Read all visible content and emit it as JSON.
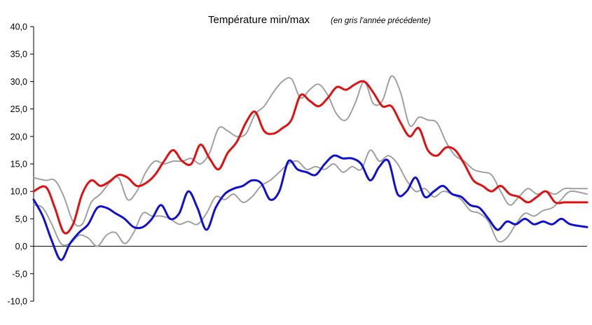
{
  "chart_data": {
    "type": "line",
    "title": "Température min/max",
    "subtitle": "(en gris l'année précédente)",
    "xlabel": "",
    "ylabel": "",
    "ylim": [
      -10,
      40
    ],
    "yticks": [
      -10,
      -5,
      0,
      5,
      10,
      15,
      20,
      25,
      30,
      35,
      40
    ],
    "ytick_labels": [
      "-10,0",
      "-5,0",
      "0,0",
      "5,0",
      "10,0",
      "15,0",
      "20,0",
      "25,0",
      "30,0",
      "35,0",
      "40,0"
    ],
    "x_range": [
      0,
      365
    ],
    "grid": false,
    "legend": "none",
    "series": [
      {
        "color": "#e01010",
        "x": [
          0,
          8,
          14,
          20,
          26,
          32,
          38,
          44,
          50,
          56,
          62,
          68,
          74,
          80,
          86,
          92,
          98,
          104,
          110,
          116,
          122,
          128,
          134,
          140,
          146,
          152,
          158,
          164,
          170,
          176,
          182,
          188,
          194,
          200,
          206,
          212,
          218,
          224,
          230,
          236,
          242,
          248,
          254,
          260,
          266,
          272,
          278,
          284,
          290,
          296,
          302,
          308,
          314,
          320,
          326,
          332,
          338,
          344,
          350,
          356,
          365
        ],
        "values": [
          10.0,
          10.8,
          7.0,
          2.5,
          4.0,
          9.5,
          12.0,
          11.0,
          11.8,
          13.0,
          12.5,
          11.0,
          11.5,
          13.0,
          15.5,
          17.5,
          15.5,
          15.0,
          18.5,
          16.0,
          14.0,
          17.0,
          19.0,
          22.5,
          24.5,
          21.0,
          20.5,
          21.5,
          23.0,
          27.5,
          26.5,
          25.5,
          27.0,
          29.0,
          28.5,
          29.5,
          30.0,
          28.0,
          25.5,
          25.5,
          22.5,
          20.0,
          21.5,
          17.5,
          16.5,
          18.0,
          17.5,
          15.0,
          12.0,
          11.0,
          10.0,
          11.0,
          9.5,
          9.0,
          8.0,
          9.0,
          10.0,
          8.0,
          8.0,
          8.0,
          8.0
        ]
      },
      {
        "color": "#1010d0",
        "x": [
          0,
          6,
          12,
          18,
          24,
          30,
          36,
          42,
          48,
          54,
          60,
          66,
          72,
          78,
          84,
          90,
          96,
          102,
          108,
          114,
          120,
          126,
          132,
          138,
          144,
          150,
          156,
          162,
          168,
          174,
          180,
          186,
          192,
          198,
          204,
          210,
          216,
          222,
          228,
          234,
          240,
          246,
          252,
          258,
          264,
          270,
          276,
          282,
          288,
          294,
          300,
          306,
          312,
          318,
          324,
          330,
          336,
          342,
          348,
          354,
          365
        ],
        "values": [
          8.5,
          5.5,
          1.0,
          -2.5,
          0.5,
          2.5,
          4.0,
          7.0,
          7.0,
          6.0,
          5.0,
          3.5,
          3.5,
          5.0,
          7.5,
          5.0,
          6.0,
          10.0,
          7.0,
          3.0,
          7.0,
          9.5,
          10.5,
          11.0,
          12.0,
          11.5,
          8.5,
          10.0,
          15.5,
          14.0,
          13.5,
          13.0,
          15.0,
          16.5,
          16.0,
          16.0,
          15.0,
          12.0,
          14.5,
          15.5,
          9.5,
          10.0,
          12.5,
          9.0,
          10.0,
          11.0,
          9.5,
          9.0,
          7.5,
          7.0,
          5.0,
          3.0,
          4.5,
          4.0,
          5.0,
          4.0,
          4.5,
          4.0,
          5.0,
          4.0,
          3.5
        ]
      },
      {
        "color": "#a0a0a0",
        "x": [
          0,
          8,
          14,
          20,
          26,
          32,
          38,
          44,
          50,
          56,
          62,
          68,
          74,
          80,
          86,
          92,
          98,
          104,
          110,
          116,
          122,
          128,
          134,
          140,
          146,
          152,
          158,
          164,
          170,
          176,
          182,
          188,
          194,
          200,
          206,
          212,
          218,
          224,
          230,
          236,
          242,
          248,
          254,
          260,
          266,
          272,
          278,
          284,
          290,
          296,
          302,
          308,
          314,
          320,
          326,
          332,
          338,
          344,
          350,
          356,
          365
        ],
        "values": [
          12.5,
          12.0,
          12.0,
          9.0,
          4.5,
          4.0,
          8.0,
          9.5,
          11.5,
          12.5,
          8.5,
          10.0,
          13.5,
          15.5,
          15.0,
          15.5,
          15.5,
          16.0,
          15.0,
          17.0,
          21.5,
          21.0,
          20.0,
          20.5,
          24.0,
          25.5,
          28.0,
          30.0,
          30.5,
          27.0,
          28.5,
          29.5,
          27.5,
          24.0,
          23.0,
          26.0,
          30.0,
          26.0,
          26.5,
          31.0,
          28.0,
          22.0,
          23.5,
          23.0,
          22.5,
          19.0,
          16.5,
          15.5,
          14.0,
          13.5,
          13.0,
          10.0,
          7.5,
          9.0,
          10.5,
          9.5,
          10.0,
          9.5,
          10.5,
          10.5,
          10.5
        ]
      },
      {
        "color": "#a0a0a0",
        "x": [
          0,
          6,
          12,
          18,
          24,
          30,
          36,
          42,
          48,
          54,
          60,
          66,
          72,
          78,
          84,
          90,
          96,
          102,
          108,
          114,
          120,
          126,
          132,
          138,
          144,
          150,
          156,
          162,
          168,
          174,
          180,
          186,
          192,
          198,
          204,
          210,
          216,
          222,
          228,
          234,
          240,
          246,
          252,
          258,
          264,
          270,
          276,
          282,
          288,
          294,
          300,
          306,
          312,
          318,
          324,
          330,
          336,
          342,
          348,
          354,
          365
        ],
        "values": [
          7.5,
          7.0,
          4.0,
          0.5,
          0.5,
          2.0,
          1.5,
          0.0,
          2.0,
          2.5,
          0.5,
          2.5,
          6.0,
          5.5,
          5.5,
          5.0,
          4.0,
          4.5,
          4.0,
          6.0,
          9.0,
          8.5,
          9.5,
          8.0,
          9.0,
          11.0,
          12.0,
          13.5,
          15.0,
          15.5,
          14.0,
          14.5,
          14.0,
          15.0,
          13.5,
          14.5,
          14.0,
          17.5,
          15.5,
          16.5,
          15.0,
          12.0,
          10.0,
          10.5,
          9.0,
          10.0,
          9.5,
          8.5,
          6.5,
          6.0,
          4.5,
          1.0,
          1.5,
          4.0,
          6.0,
          5.5,
          6.5,
          7.0,
          8.5,
          10.0,
          9.5
        ]
      }
    ]
  }
}
